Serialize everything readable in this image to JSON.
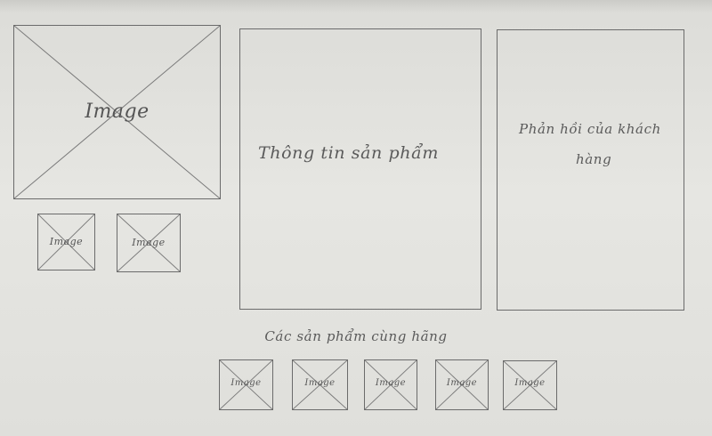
{
  "wireframe": {
    "main_image": {
      "label": "Image"
    },
    "thumbnails": [
      {
        "label": "Image"
      },
      {
        "label": "Image"
      }
    ],
    "product_info": {
      "label": "Thông tin sản phẩm"
    },
    "customer_feedback": {
      "label_line1": "Phản hồi của khách",
      "label_line2": "hàng"
    },
    "related": {
      "caption": "Các sản phẩm cùng hãng",
      "items": [
        {
          "label": "Image"
        },
        {
          "label": "Image"
        },
        {
          "label": "Image"
        },
        {
          "label": "Image"
        },
        {
          "label": "Image"
        }
      ]
    }
  }
}
